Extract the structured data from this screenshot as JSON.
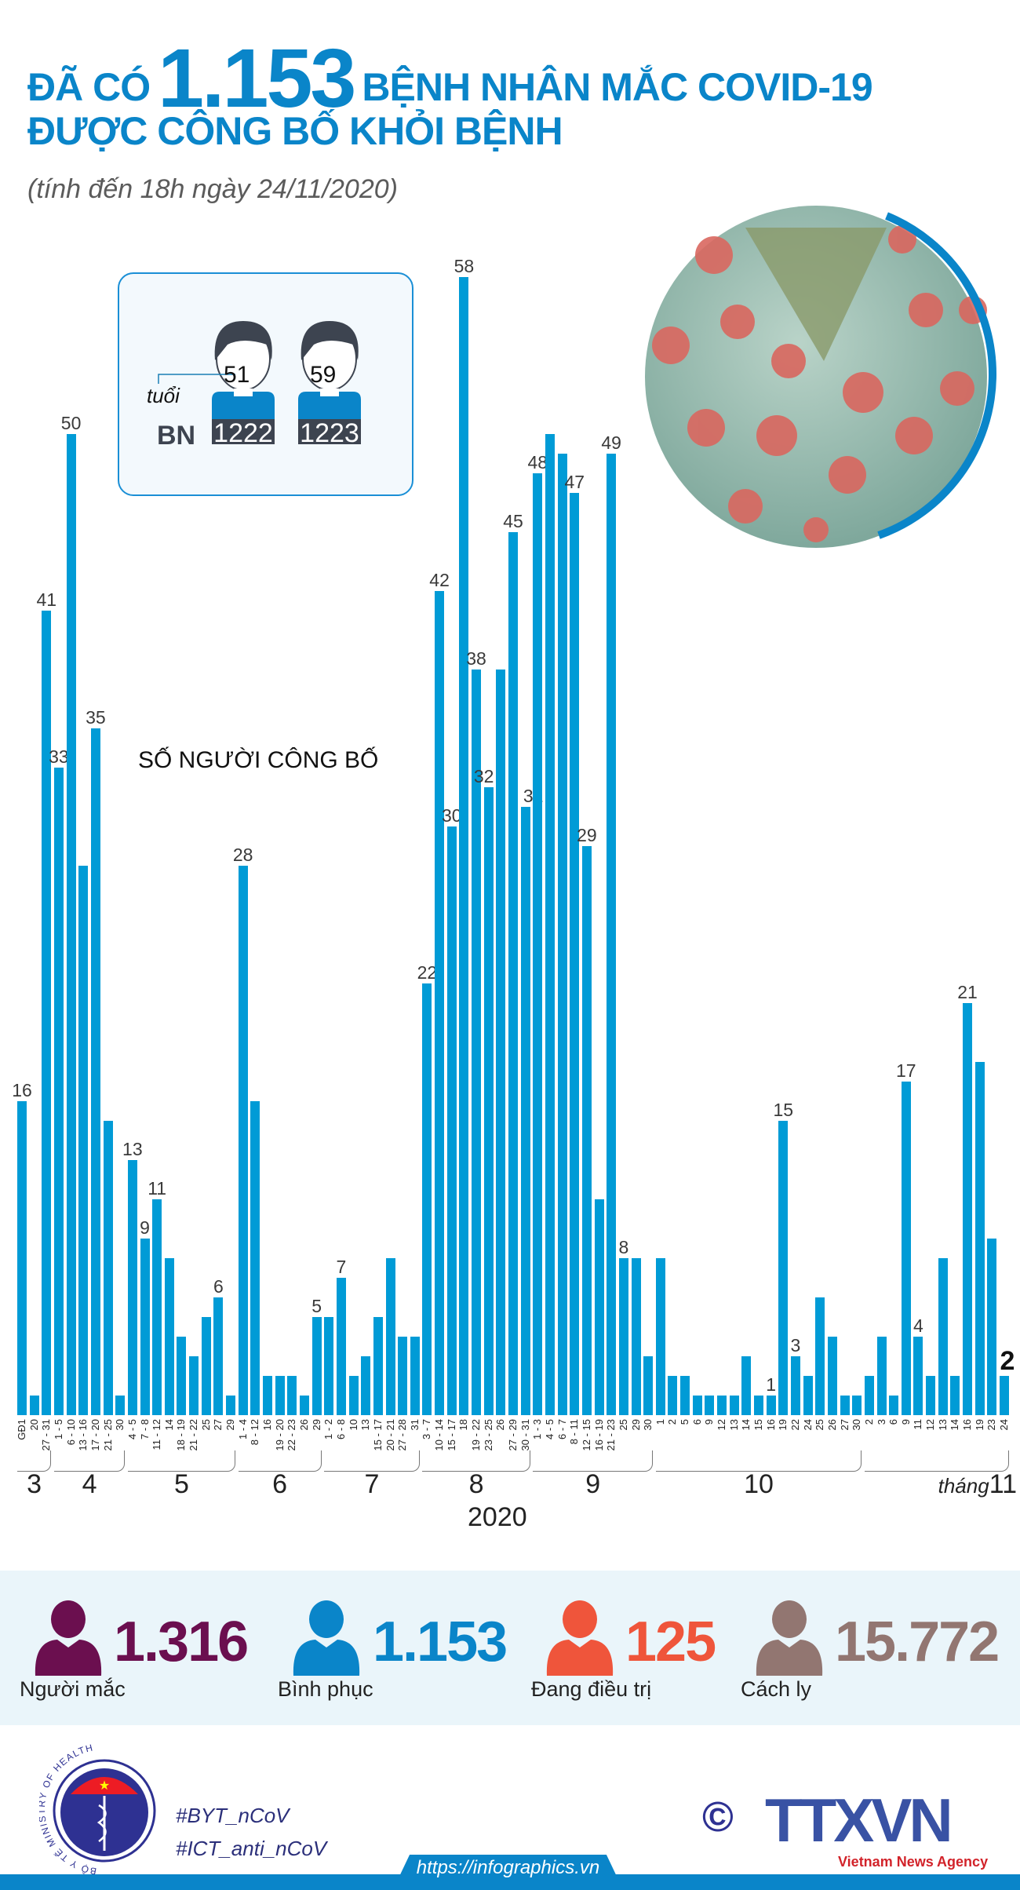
{
  "header": {
    "title_pre": "ĐÃ CÓ",
    "title_number": "1.153",
    "title_post": "BỆNH NHÂN MẮC COVID-19",
    "title_line2": "ĐƯỢC CÔNG BỐ KHỎI BỆNH",
    "subtitle": "(tính đến 18h ngày 24/11/2020)"
  },
  "patients": {
    "age_label": "tuổi",
    "prefix": "BN",
    "items": [
      {
        "age": "51",
        "id": "1222"
      },
      {
        "age": "59",
        "id": "1223"
      }
    ]
  },
  "chart_data": {
    "type": "bar",
    "title": "SỐ NGƯỜI CÔNG BỐ",
    "year": "2020",
    "month_prefix": "tháng",
    "color": "#009bd6",
    "months": [
      {
        "label": "3",
        "count": 3
      },
      {
        "label": "4",
        "count": 6
      },
      {
        "label": "5",
        "count": 9
      },
      {
        "label": "6",
        "count": 7
      },
      {
        "label": "7",
        "count": 8
      },
      {
        "label": "8",
        "count": 9
      },
      {
        "label": "9",
        "count": 10
      },
      {
        "label": "10",
        "count": 17
      },
      {
        "label": "11",
        "count": 12
      }
    ],
    "categories": [
      "GĐ1",
      "20",
      "27 - 31",
      "1 - 5",
      "6 - 10",
      "13 - 16",
      "17 - 20",
      "21 - 25",
      "30",
      "4 - 5",
      "7 - 8",
      "11 - 12",
      "14",
      "18 - 19",
      "21 - 22",
      "25",
      "27",
      "29",
      "1 - 4",
      "8 - 12",
      "16",
      "19 - 20",
      "22 - 23",
      "26",
      "29",
      "1 - 2",
      "6 - 8",
      "10",
      "13",
      "15 - 17",
      "20 - 21",
      "27 - 28",
      "31",
      "3 - 7",
      "10 - 14",
      "15 - 17",
      "18",
      "19 - 22",
      "23 - 25",
      "26",
      "27 - 29",
      "30 - 31",
      "1 - 3",
      "4 - 5",
      "6 - 7",
      "8 - 11",
      "12 - 15",
      "16 - 19",
      "21 - 23",
      "25",
      "29",
      "30",
      "1",
      "2",
      "5",
      "6",
      "9",
      "12",
      "13",
      "14",
      "15",
      "16",
      "19",
      "22",
      "24",
      "25",
      "26",
      "27",
      "30",
      "2",
      "3",
      "6",
      "9",
      "11",
      "12",
      "13",
      "14",
      "16",
      "19",
      "23",
      "24"
    ],
    "values": [
      16,
      1,
      41,
      33,
      50,
      28,
      35,
      15,
      1,
      13,
      9,
      11,
      8,
      4,
      3,
      5,
      6,
      1,
      28,
      16,
      2,
      2,
      2,
      1,
      5,
      5,
      7,
      2,
      3,
      5,
      8,
      4,
      4,
      22,
      42,
      30,
      58,
      38,
      32,
      38,
      45,
      31,
      48,
      50,
      49,
      47,
      29,
      11,
      49,
      8,
      8,
      3,
      8,
      2,
      2,
      1,
      1,
      1,
      1,
      3,
      1,
      1,
      15,
      3,
      2,
      6,
      4,
      1,
      1,
      2,
      4,
      1,
      17,
      4,
      2,
      8,
      2,
      21,
      18,
      9,
      2
    ],
    "labeled_values": {
      "0": "16",
      "2": "41",
      "3": "33",
      "4": "50",
      "6": "35",
      "9": "13",
      "10": "9",
      "11": "11",
      "16": "6",
      "18": "28",
      "24": "5",
      "26": "7",
      "33": "22",
      "34": "42",
      "35": "30",
      "36": "58",
      "37": "38",
      "38": "32",
      "40": "45",
      "41": "31",
      "42": "48",
      "45": "47",
      "46": "29",
      "48": "49",
      "49": "8",
      "61": "1",
      "62": "15",
      "63": "3",
      "72": "17",
      "73": "4",
      "77": "21",
      "80": "2"
    },
    "ylim": [
      0,
      58
    ]
  },
  "stats": [
    {
      "value": "1.316",
      "label": "Người mắc",
      "color": "#6b0f4f"
    },
    {
      "value": "1.153",
      "label": "Bình phục",
      "color": "#0a85c9"
    },
    {
      "value": "125",
      "label": "Đang điều trị",
      "color": "#ef553b"
    },
    {
      "value": "15.772",
      "label": "Cách ly",
      "color": "#927671"
    }
  ],
  "footer": {
    "hashtag1": "#BYT_nCoV",
    "hashtag2": "#ICT_anti_nCoV",
    "url": "https://infographics.vn",
    "moh_logo_text": "BỘ Y TẾ MINISTRY OF HEALTH",
    "agency_logo": "TTXVN",
    "agency_sub": "Vietnam News Agency",
    "copyright": "©"
  }
}
